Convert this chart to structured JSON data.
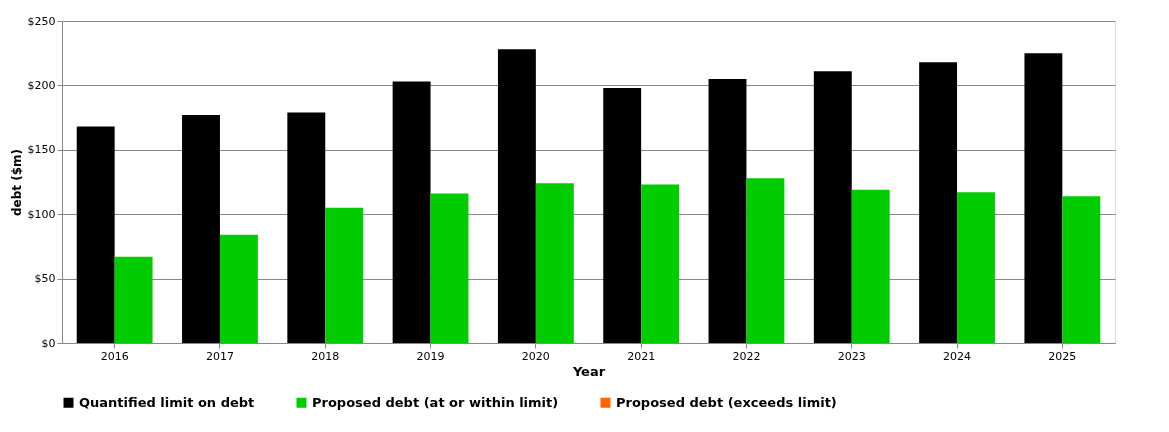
{
  "chart_data": {
    "type": "bar",
    "xlabel": "Year",
    "ylabel": "debt ($m)",
    "categories": [
      "2016",
      "2017",
      "2018",
      "2019",
      "2020",
      "2021",
      "2022",
      "2023",
      "2024",
      "2025"
    ],
    "series": [
      {
        "name": "Quantified limit on debt",
        "color": "#000000",
        "values": [
          168,
          177,
          179,
          203,
          228,
          198,
          205,
          211,
          218,
          225
        ]
      },
      {
        "name": "Proposed debt (at or within limit)",
        "color": "#00cc00",
        "values": [
          67,
          84,
          105,
          116,
          124,
          123,
          128,
          119,
          117,
          114
        ]
      },
      {
        "name": "Proposed debt (exceeds limit)",
        "color": "#ff6600",
        "values": [
          null,
          null,
          null,
          null,
          null,
          null,
          null,
          null,
          null,
          null
        ]
      }
    ],
    "ylim": [
      0,
      250
    ],
    "yticks": [
      {
        "value": 0,
        "label": "$0"
      },
      {
        "value": 50,
        "label": "$50"
      },
      {
        "value": 100,
        "label": "$100"
      },
      {
        "value": 150,
        "label": "$150"
      },
      {
        "value": 200,
        "label": "$200"
      },
      {
        "value": 250,
        "label": "$250"
      }
    ],
    "grid": "y",
    "legend": "bottom"
  }
}
